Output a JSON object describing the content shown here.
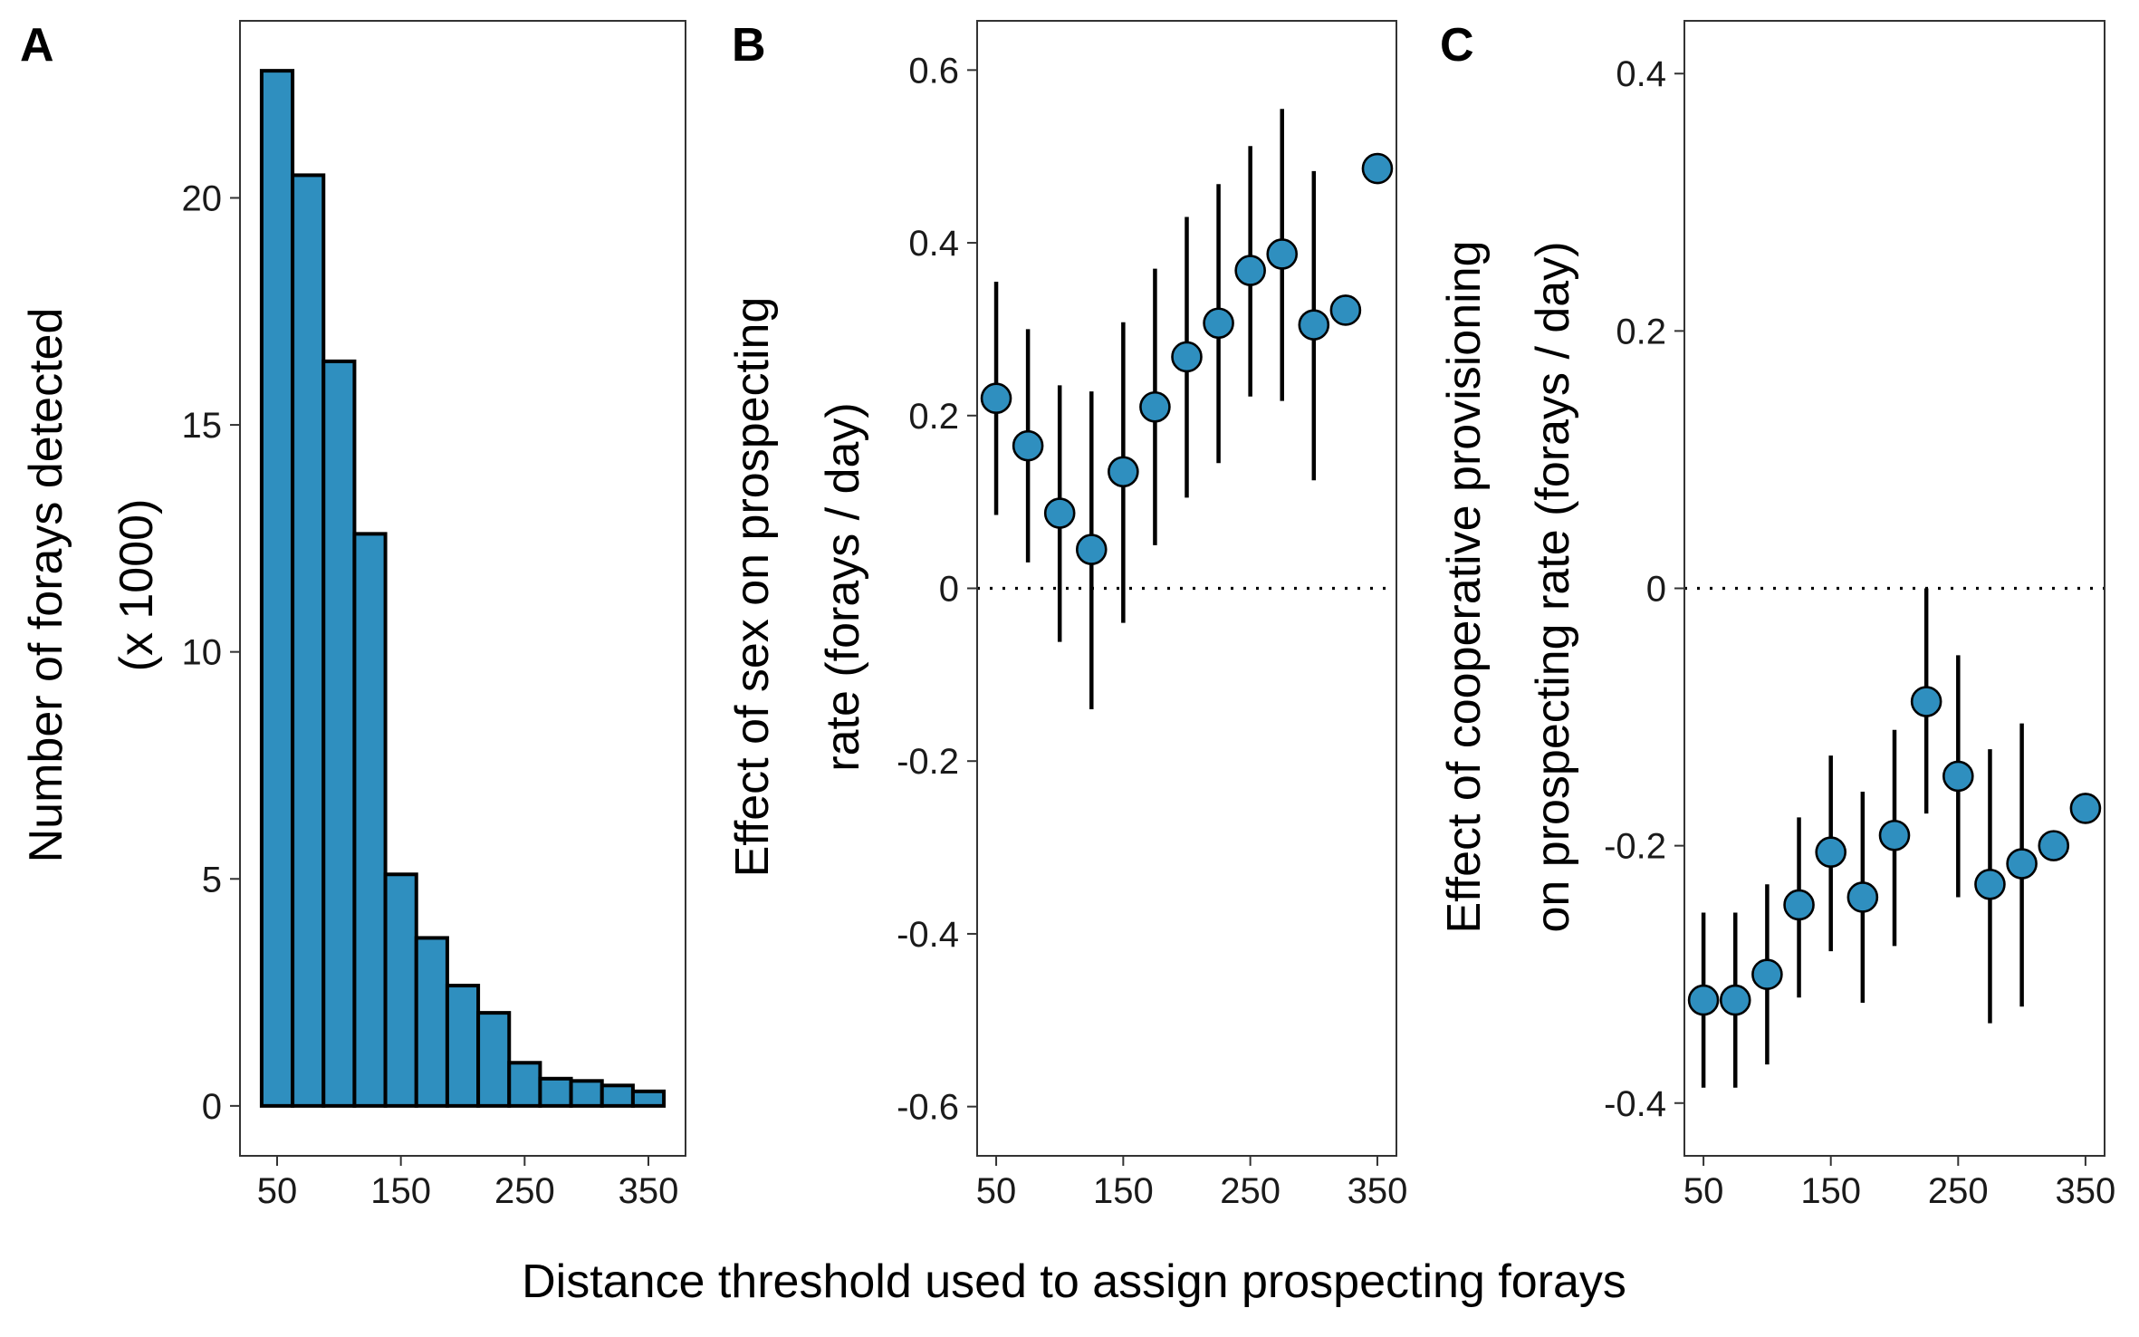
{
  "figure": {
    "shared_xlabel": "Distance threshold used to assign prospecting forays",
    "bar_color": "#2f8fbf",
    "point_color": "#2f8fbf",
    "edge_color": "#000000"
  },
  "chart_data": [
    {
      "panel": "A",
      "type": "bar",
      "ylabel_lines": [
        "Number of forays detected",
        "(x 1000)"
      ],
      "x": [
        50,
        75,
        100,
        125,
        150,
        175,
        200,
        225,
        250,
        275,
        300,
        325,
        350
      ],
      "values": [
        22.8,
        20.5,
        16.4,
        12.6,
        5.1,
        3.7,
        2.65,
        2.05,
        0.95,
        0.6,
        0.55,
        0.45,
        0.32
      ],
      "xlim": [
        20,
        380
      ],
      "ylim": [
        -1.1,
        23.9
      ],
      "xticks": [
        50,
        150,
        250,
        350
      ],
      "yticks": [
        0,
        5,
        10,
        15,
        20
      ],
      "grid": false
    },
    {
      "panel": "B",
      "type": "scatter",
      "ylabel_lines": [
        "Effect of sex on prospecting",
        "rate (forays / day)"
      ],
      "x": [
        50,
        75,
        100,
        125,
        150,
        175,
        200,
        225,
        250,
        275,
        300,
        325,
        350
      ],
      "values": [
        0.22,
        0.165,
        0.087,
        0.045,
        0.135,
        0.21,
        0.268,
        0.307,
        0.368,
        0.387,
        0.305,
        0.322,
        0.486
      ],
      "lower": [
        0.085,
        0.03,
        -0.062,
        -0.14,
        -0.04,
        0.05,
        0.105,
        0.145,
        0.222,
        0.217,
        0.125,
        null,
        null
      ],
      "upper": [
        0.355,
        0.3,
        0.235,
        0.228,
        0.308,
        0.37,
        0.43,
        0.468,
        0.512,
        0.555,
        0.483,
        null,
        null
      ],
      "reference_line": 0,
      "xlim": [
        35,
        365
      ],
      "ylim": [
        -0.657,
        0.657
      ],
      "xticks": [
        50,
        150,
        250,
        350
      ],
      "yticks": [
        -0.6,
        -0.4,
        -0.2,
        0,
        0.2,
        0.4,
        0.6
      ],
      "grid": false
    },
    {
      "panel": "C",
      "type": "scatter",
      "ylabel_lines": [
        "Effect of cooperative provisioning",
        "on prospecting rate (forays / day)"
      ],
      "x": [
        50,
        75,
        100,
        125,
        150,
        175,
        200,
        225,
        250,
        275,
        300,
        325,
        350
      ],
      "values": [
        -0.32,
        -0.32,
        -0.3,
        -0.246,
        -0.205,
        -0.24,
        -0.192,
        -0.088,
        -0.146,
        -0.23,
        -0.214,
        -0.2,
        -0.171
      ],
      "lower": [
        -0.388,
        -0.388,
        -0.37,
        -0.318,
        -0.282,
        -0.322,
        -0.278,
        -0.175,
        -0.24,
        -0.338,
        -0.325,
        null,
        null
      ],
      "upper": [
        -0.252,
        -0.252,
        -0.23,
        -0.178,
        -0.13,
        -0.158,
        -0.11,
        0.0,
        -0.052,
        -0.125,
        -0.105,
        null,
        null
      ],
      "reference_line": 0,
      "xlim": [
        35,
        365
      ],
      "ylim": [
        -0.441,
        0.441
      ],
      "xticks": [
        50,
        150,
        250,
        350
      ],
      "yticks": [
        -0.4,
        -0.2,
        0,
        0.2,
        0.4
      ],
      "grid": false
    }
  ]
}
